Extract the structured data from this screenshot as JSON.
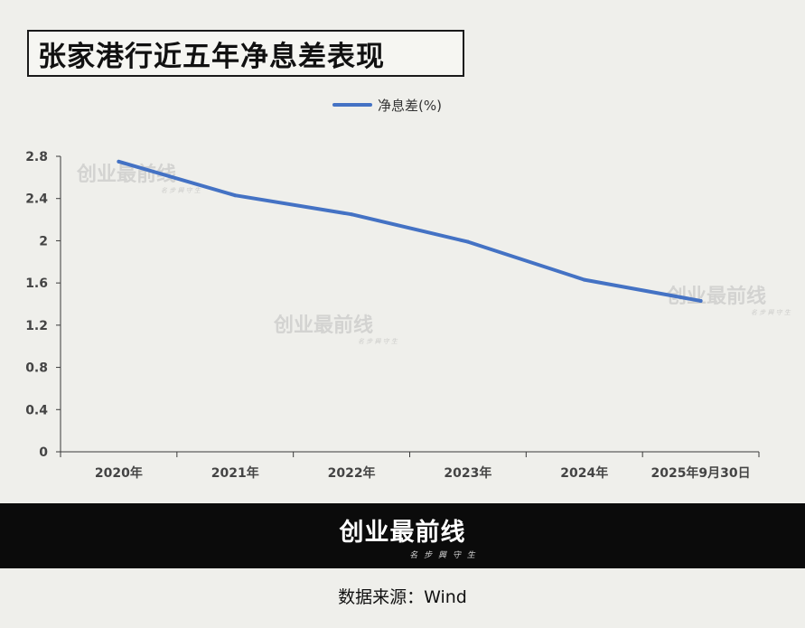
{
  "title": "张家港行近五年净息差表现",
  "watermark": {
    "text": "创业最前线",
    "sub": "名 步 興 守 生"
  },
  "footer": {
    "logo": "创业最前线",
    "tagline": "名 步 興 守 生",
    "source": "数据来源：Wind"
  },
  "colors": {
    "line": "#4472c4",
    "background": "#efefeb",
    "band": "#0b0b0b",
    "axis": "#3a3a3a"
  },
  "chart_data": {
    "type": "line",
    "title": "张家港行近五年净息差表现",
    "categories": [
      "2020年",
      "2021年",
      "2022年",
      "2023年",
      "2024年",
      "2025年9月30日"
    ],
    "series": [
      {
        "name": "净息差(%)",
        "values": [
          2.75,
          2.43,
          2.25,
          1.99,
          1.63,
          1.43
        ]
      }
    ],
    "ylim": [
      0,
      2.8
    ],
    "yticks": [
      "0",
      "0.4",
      "0.8",
      "1.2",
      "1.6",
      "2",
      "2.4",
      "2.8"
    ],
    "legend": "top-center",
    "grid": false
  }
}
